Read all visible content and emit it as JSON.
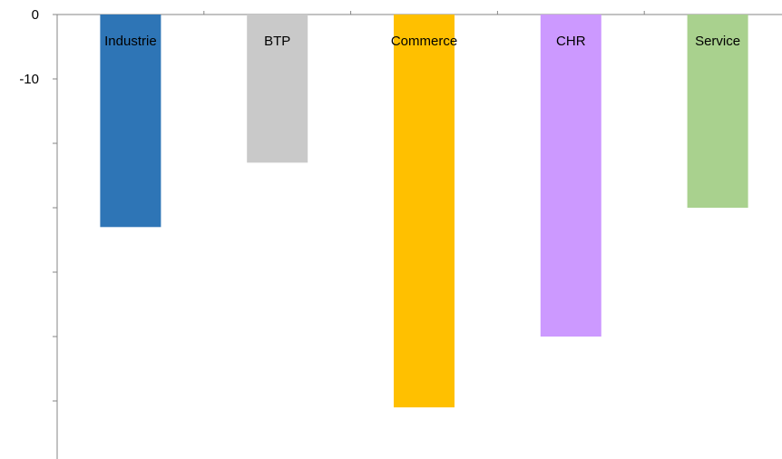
{
  "chart_data": {
    "type": "bar",
    "categories": [
      "Industrie",
      "BTP",
      "Commerce",
      "CHR",
      "Service"
    ],
    "values": [
      -33,
      -23,
      -61,
      -50,
      -30
    ],
    "colors": [
      "#2E75B6",
      "#C9C9C9",
      "#FFC000",
      "#CC99FF",
      "#A9D18E"
    ],
    "ylim": [
      -70,
      0
    ],
    "yticks": [
      0,
      -10,
      -20,
      -30,
      -40,
      -50,
      -60
    ],
    "ytick_labels": [
      "0",
      "-10",
      "",
      "",
      "",
      "",
      ""
    ],
    "title": "",
    "xlabel": "",
    "ylabel": "",
    "grid": false,
    "legend": false,
    "label_placement": "inside-top",
    "axis_color": "#868686"
  }
}
